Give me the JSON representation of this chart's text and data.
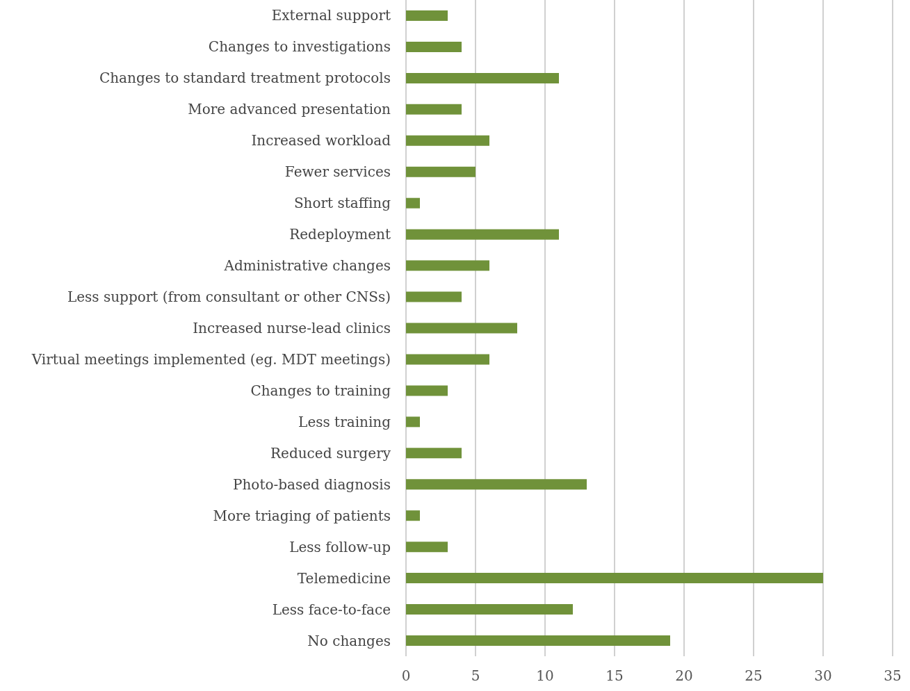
{
  "chart_data": {
    "type": "bar",
    "orientation": "horizontal",
    "categories": [
      "External support",
      "Changes to investigations",
      "Changes to standard treatment protocols",
      "More advanced presentation",
      "Increased workload",
      "Fewer services",
      "Short staffing",
      "Redeployment",
      "Administrative changes",
      "Less support (from consultant or other CNSs)",
      "Increased nurse-lead clinics",
      "Virtual meetings implemented (eg. MDT meetings)",
      "Changes to training",
      "Less training",
      "Reduced surgery",
      "Photo-based diagnosis",
      "More triaging of patients",
      "Less follow-up",
      "Telemedicine",
      "Less face-to-face",
      "No changes"
    ],
    "values": [
      3,
      4,
      11,
      4,
      6,
      5,
      1,
      11,
      6,
      4,
      8,
      6,
      3,
      1,
      4,
      13,
      1,
      3,
      30,
      12,
      19
    ],
    "color": "#70923a",
    "xlim": [
      0,
      35
    ],
    "xticks": [
      0,
      5,
      10,
      15,
      20,
      25,
      30,
      35
    ],
    "grid": "x"
  }
}
